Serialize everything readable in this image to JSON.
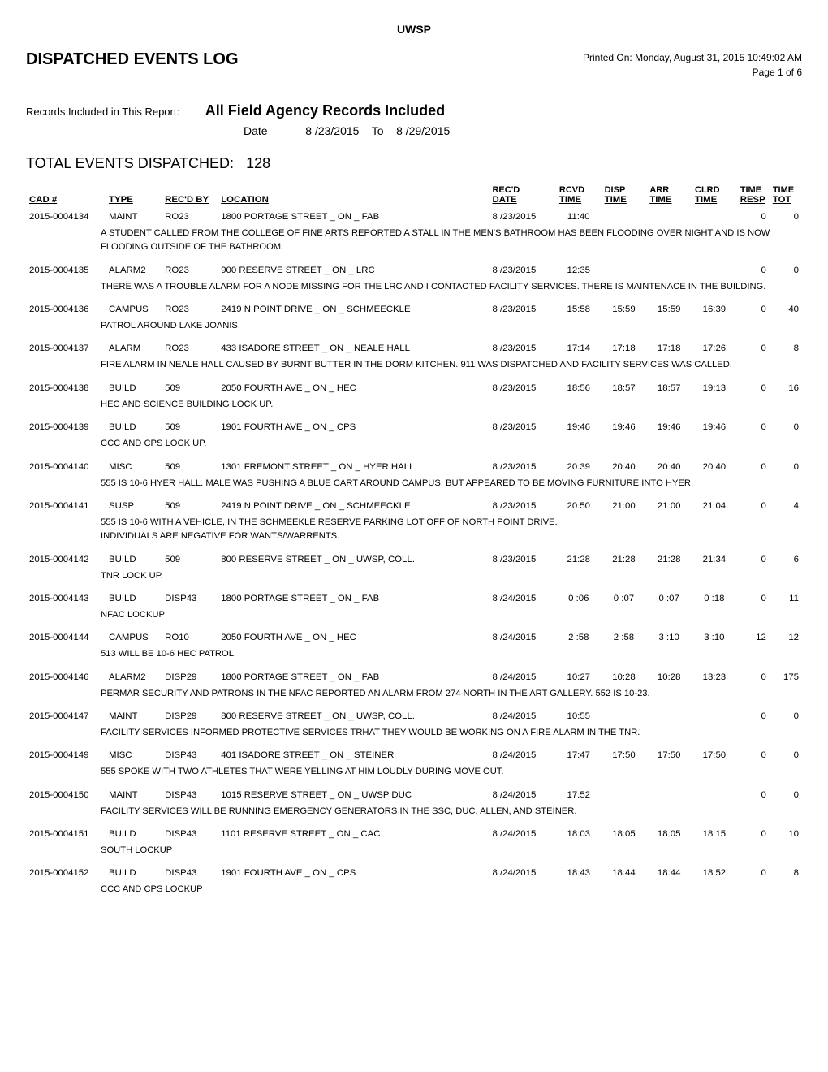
{
  "header": {
    "org": "UWSP",
    "title": "DISPATCHED EVENTS LOG",
    "printed_label": "Printed On:",
    "printed_on": "Monday, August 31, 2015 10:49:02 AM",
    "page_label": "Page 1 of 6",
    "records_label": "Records Included in This Report:",
    "records_value": "All Field Agency Records Included",
    "date_label": "Date",
    "date_from": "8 /23/2015",
    "date_to_label": "To",
    "date_to": "8 /29/2015",
    "totals_label": "TOTAL EVENTS DISPATCHED:",
    "totals_value": "128"
  },
  "columns": {
    "cad": "CAD  #",
    "type": "TYPE",
    "recd_by": "REC'D BY",
    "location": "LOCATION",
    "recd_sup": "REC'D",
    "date": "DATE",
    "rcvd_sup": "RCVD",
    "rcvd": "TIME",
    "disp_sup": "DISP",
    "disp": "TIME",
    "arr_sup": "ARR",
    "arr": "TIME",
    "clrd_sup": "CLRD",
    "clrd": "TIME",
    "resp_sup": "TIME",
    "resp": "RESP",
    "tot_sup": "TIME",
    "tot": "TOT"
  },
  "rows": [
    {
      "cad": "2015-0004134",
      "type": "MAINT",
      "recd_by": "RO23",
      "location": "1800 PORTAGE STREET _ ON _ FAB",
      "date": "8 /23/2015",
      "rcvd": "11:40",
      "disp": "",
      "arr": "",
      "clrd": "",
      "resp": "0",
      "tot": "0",
      "desc": "A STUDENT CALLED FROM THE COLLEGE OF FINE ARTS REPORTED A STALL IN THE MEN'S BATHROOM HAS BEEN FLOODING OVER NIGHT AND IS NOW FLOODING OUTSIDE OF THE BATHROOM."
    },
    {
      "cad": "2015-0004135",
      "type": "ALARM2",
      "recd_by": "RO23",
      "location": "900 RESERVE STREET _ ON _ LRC",
      "date": "8 /23/2015",
      "rcvd": "12:35",
      "disp": "",
      "arr": "",
      "clrd": "",
      "resp": "0",
      "tot": "0",
      "desc": "THERE WAS A TROUBLE ALARM FOR A NODE MISSING FOR THE LRC AND I CONTACTED FACILITY SERVICES. THERE IS MAINTENACE IN THE BUILDING."
    },
    {
      "cad": "2015-0004136",
      "type": "CAMPUS",
      "recd_by": "RO23",
      "location": "2419 N POINT DRIVE _ ON _ SCHMEECKLE",
      "date": "8 /23/2015",
      "rcvd": "15:58",
      "disp": "15:59",
      "arr": "15:59",
      "clrd": "16:39",
      "resp": "0",
      "tot": "40",
      "desc": "PATROL AROUND LAKE JOANIS."
    },
    {
      "cad": "2015-0004137",
      "type": "ALARM",
      "recd_by": "RO23",
      "location": "433 ISADORE STREET _ ON _ NEALE HALL",
      "date": "8 /23/2015",
      "rcvd": "17:14",
      "disp": "17:18",
      "arr": "17:18",
      "clrd": "17:26",
      "resp": "0",
      "tot": "8",
      "desc": "FIRE ALARM IN NEALE HALL CAUSED BY BURNT BUTTER IN THE DORM KITCHEN.  911 WAS DISPATCHED AND FACILITY SERVICES WAS CALLED."
    },
    {
      "cad": "2015-0004138",
      "type": "BUILD",
      "recd_by": "509",
      "location": "2050 FOURTH AVE _ ON _ HEC",
      "date": "8 /23/2015",
      "rcvd": "18:56",
      "disp": "18:57",
      "arr": "18:57",
      "clrd": "19:13",
      "resp": "0",
      "tot": "16",
      "desc": "HEC AND SCIENCE BUILDING LOCK UP."
    },
    {
      "cad": "2015-0004139",
      "type": "BUILD",
      "recd_by": "509",
      "location": "1901 FOURTH AVE _ ON _ CPS",
      "date": "8 /23/2015",
      "rcvd": "19:46",
      "disp": "19:46",
      "arr": "19:46",
      "clrd": "19:46",
      "resp": "0",
      "tot": "0",
      "desc": "CCC AND CPS LOCK UP."
    },
    {
      "cad": "2015-0004140",
      "type": "MISC",
      "recd_by": "509",
      "location": "1301 FREMONT STREET _ ON _ HYER HALL",
      "date": "8 /23/2015",
      "rcvd": "20:39",
      "disp": "20:40",
      "arr": "20:40",
      "clrd": "20:40",
      "resp": "0",
      "tot": "0",
      "desc": "555 IS 10-6 HYER HALL. MALE WAS PUSHING A BLUE CART AROUND CAMPUS, BUT APPEARED TO BE MOVING FURNITURE INTO HYER."
    },
    {
      "cad": "2015-0004141",
      "type": "SUSP",
      "recd_by": "509",
      "location": "2419 N POINT DRIVE _ ON _ SCHMEECKLE",
      "date": "8 /23/2015",
      "rcvd": "20:50",
      "disp": "21:00",
      "arr": "21:00",
      "clrd": "21:04",
      "resp": "0",
      "tot": "4",
      "desc": "555 IS 10-6 WITH A VEHICLE, IN THE SCHMEEKLE RESERVE PARKING LOT OFF OF NORTH POINT DRIVE.\nINDIVIDUALS ARE NEGATIVE FOR WANTS/WARRENTS."
    },
    {
      "cad": "2015-0004142",
      "type": "BUILD",
      "recd_by": "509",
      "location": "800 RESERVE STREET _ ON _ UWSP, COLL.",
      "date": "8 /23/2015",
      "rcvd": "21:28",
      "disp": "21:28",
      "arr": "21:28",
      "clrd": "21:34",
      "resp": "0",
      "tot": "6",
      "desc": "TNR LOCK UP."
    },
    {
      "cad": "2015-0004143",
      "type": "BUILD",
      "recd_by": "DISP43",
      "location": "1800 PORTAGE STREET _ ON _ FAB",
      "date": "8 /24/2015",
      "rcvd": "0 :06",
      "disp": "0 :07",
      "arr": "0 :07",
      "clrd": "0 :18",
      "resp": "0",
      "tot": "11",
      "desc": "NFAC LOCKUP"
    },
    {
      "cad": "2015-0004144",
      "type": "CAMPUS",
      "recd_by": "RO10",
      "location": "2050 FOURTH AVE _ ON _ HEC",
      "date": "8 /24/2015",
      "rcvd": "2 :58",
      "disp": "2 :58",
      "arr": "3 :10",
      "clrd": "3 :10",
      "resp": "12",
      "tot": "12",
      "desc": "513 WILL BE 10-6 HEC PATROL."
    },
    {
      "cad": "2015-0004146",
      "type": "ALARM2",
      "recd_by": "DISP29",
      "location": "1800 PORTAGE STREET _ ON _ FAB",
      "date": "8 /24/2015",
      "rcvd": "10:27",
      "disp": "10:28",
      "arr": "10:28",
      "clrd": "13:23",
      "resp": "0",
      "tot": "175",
      "desc": "PERMAR SECURITY AND PATRONS IN THE NFAC REPORTED AN ALARM FROM 274 NORTH IN THE ART GALLERY.  552 IS 10-23."
    },
    {
      "cad": "2015-0004147",
      "type": "MAINT",
      "recd_by": "DISP29",
      "location": "800 RESERVE STREET _ ON _ UWSP, COLL.",
      "date": "8 /24/2015",
      "rcvd": "10:55",
      "disp": "",
      "arr": "",
      "clrd": "",
      "resp": "0",
      "tot": "0",
      "desc": "FACILITY SERVICES INFORMED PROTECTIVE SERVICES TRHAT THEY WOULD BE WORKING ON A FIRE ALARM IN THE TNR."
    },
    {
      "cad": "2015-0004149",
      "type": "MISC",
      "recd_by": "DISP43",
      "location": "401 ISADORE STREET _ ON _ STEINER",
      "date": "8 /24/2015",
      "rcvd": "17:47",
      "disp": "17:50",
      "arr": "17:50",
      "clrd": "17:50",
      "resp": "0",
      "tot": "0",
      "desc": "555 SPOKE WITH TWO ATHLETES THAT WERE YELLING AT HIM LOUDLY DURING MOVE OUT."
    },
    {
      "cad": "2015-0004150",
      "type": "MAINT",
      "recd_by": "DISP43",
      "location": "1015 RESERVE STREET _ ON _ UWSP DUC",
      "date": "8 /24/2015",
      "rcvd": "17:52",
      "disp": "",
      "arr": "",
      "clrd": "",
      "resp": "0",
      "tot": "0",
      "desc": "FACILITY SERVICES WILL BE RUNNING EMERGENCY GENERATORS IN THE SSC, DUC, ALLEN, AND STEINER."
    },
    {
      "cad": "2015-0004151",
      "type": "BUILD",
      "recd_by": "DISP43",
      "location": "1101 RESERVE STREET _ ON _ CAC",
      "date": "8 /24/2015",
      "rcvd": "18:03",
      "disp": "18:05",
      "arr": "18:05",
      "clrd": "18:15",
      "resp": "0",
      "tot": "10",
      "desc": "SOUTH LOCKUP"
    },
    {
      "cad": "2015-0004152",
      "type": "BUILD",
      "recd_by": "DISP43",
      "location": "1901 FOURTH AVE _ ON _ CPS",
      "date": "8 /24/2015",
      "rcvd": "18:43",
      "disp": "18:44",
      "arr": "18:44",
      "clrd": "18:52",
      "resp": "0",
      "tot": "8",
      "desc": "CCC AND CPS LOCKUP"
    }
  ]
}
